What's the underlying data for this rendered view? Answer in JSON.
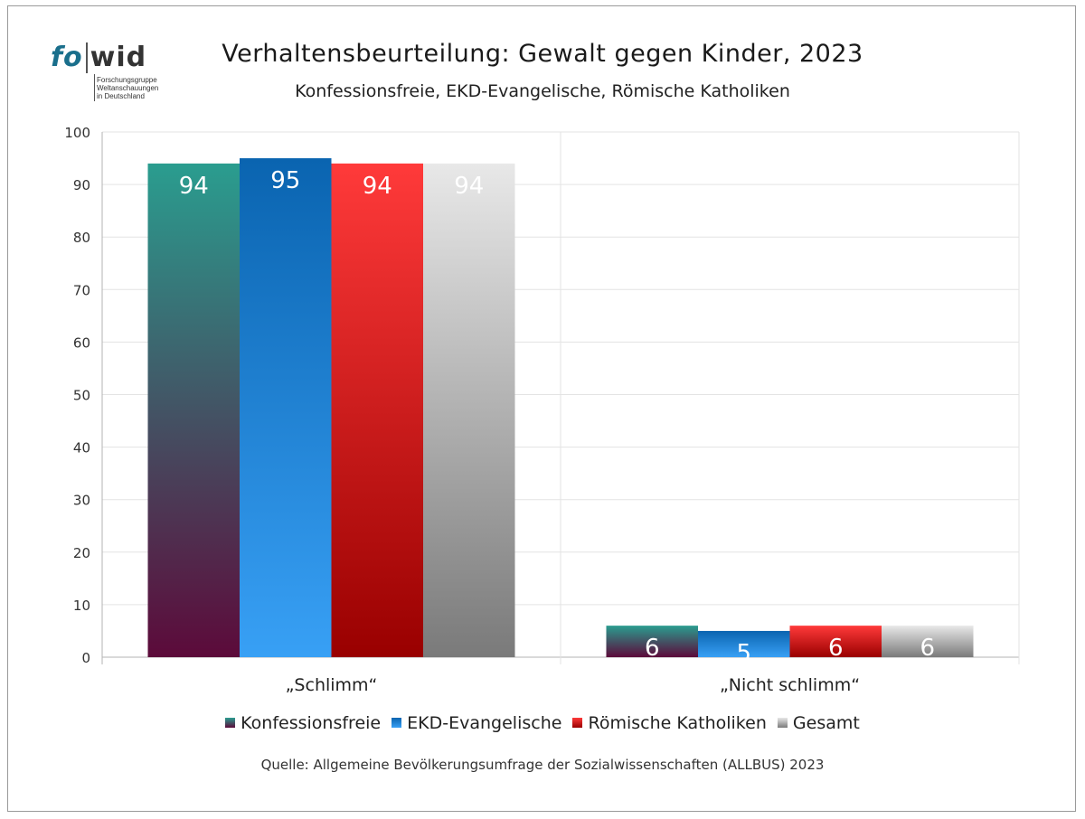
{
  "logo": {
    "wordmark_left": "fo",
    "wordmark_right": "wid",
    "subtitle_lines": [
      "Forschungsgruppe",
      "Weltanschauungen",
      "in Deutschland"
    ]
  },
  "title": "Verhaltensbeurteilung: Gewalt gegen Kinder, 2023",
  "subtitle": "Konfessionsfreie, EKD-Evangelische, Römische Katholiken",
  "source": "Quelle: Allgemeine Bevölkerungsumfrage der Sozialwissenschaften (ALLBUS) 2023",
  "chart_data": {
    "type": "bar",
    "categories": [
      "„Schlimm“",
      "„Nicht schlimm“"
    ],
    "series": [
      {
        "name": "Konfessionsfreie",
        "values": [
          94,
          6
        ],
        "color_top": "#2a9d8f",
        "color_bottom": "#5c0a3a"
      },
      {
        "name": "EKD-Evangelische",
        "values": [
          95,
          5
        ],
        "color_top": "#0a64b0",
        "color_bottom": "#38a0f5"
      },
      {
        "name": "Römische Katholiken",
        "values": [
          94,
          6
        ],
        "color_top": "#ff3a3a",
        "color_bottom": "#990000"
      },
      {
        "name": "Gesamt",
        "values": [
          94,
          6
        ],
        "color_top": "#e8e8e8",
        "color_bottom": "#7a7a7a"
      }
    ],
    "ylim": [
      0,
      100
    ],
    "yticks": [
      0,
      10,
      20,
      30,
      40,
      50,
      60,
      70,
      80,
      90,
      100
    ],
    "data_labels": [
      [
        "94",
        "95",
        "94",
        "94"
      ],
      [
        "6",
        "5",
        "6",
        "6"
      ]
    ],
    "grid": true,
    "legend_position": "bottom"
  }
}
